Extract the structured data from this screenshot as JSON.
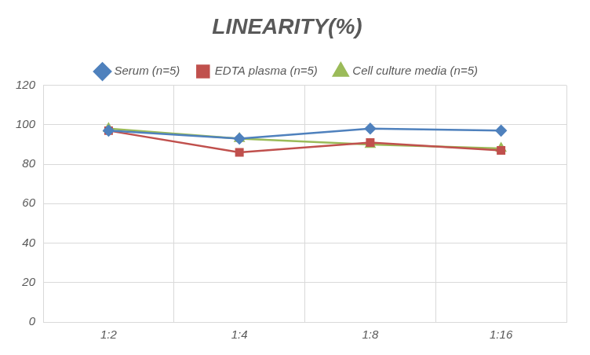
{
  "chart_data": {
    "type": "line",
    "title": "LINEARITY(%)",
    "categories": [
      "1:2",
      "1:4",
      "1:8",
      "1:16"
    ],
    "series": [
      {
        "name": "Serum (n=5)",
        "color": "#4f81bd",
        "marker": "diamond",
        "values": [
          97,
          93,
          98,
          97
        ]
      },
      {
        "name": "EDTA plasma (n=5)",
        "color": "#c0504d",
        "marker": "square",
        "values": [
          97,
          86,
          91,
          87
        ]
      },
      {
        "name": "Cell culture media (n=5)",
        "color": "#9bbb59",
        "marker": "triangle",
        "values": [
          98,
          93,
          90,
          88
        ]
      }
    ],
    "ylim": [
      0,
      120
    ],
    "yticks": [
      0,
      20,
      40,
      60,
      80,
      100,
      120
    ],
    "grid": true,
    "legend": "top"
  }
}
